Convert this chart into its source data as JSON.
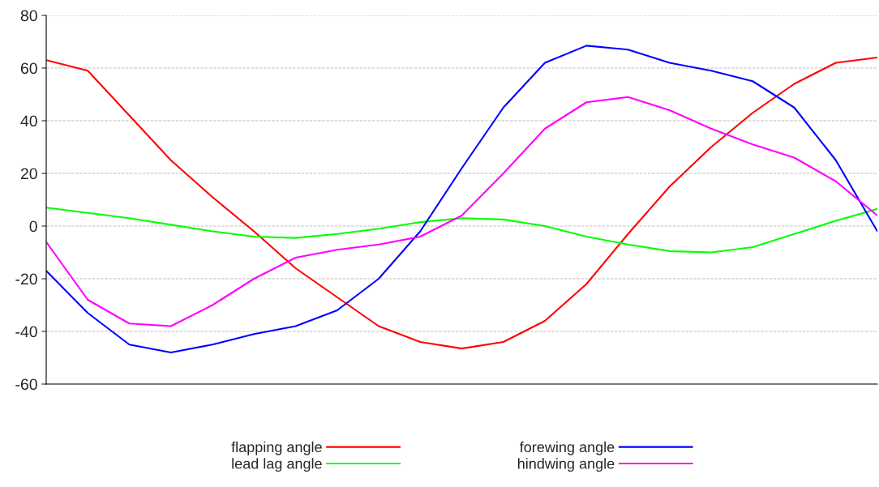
{
  "chart_data": {
    "type": "line",
    "categories": [
      null,
      null,
      null,
      null,
      null,
      null,
      null,
      null,
      null,
      null,
      null,
      null,
      null,
      null,
      null,
      null,
      null,
      null,
      null,
      null,
      null
    ],
    "series": [
      {
        "name": "flapping angle",
        "color": "#ff0000",
        "values": [
          63,
          59,
          42,
          25,
          11,
          -2,
          -16,
          -27,
          -38,
          -44,
          -46.5,
          -44,
          -36,
          -22,
          -3,
          15,
          30,
          43,
          54,
          62,
          64
        ]
      },
      {
        "name": "lead lag angle",
        "color": "#00ff00",
        "values": [
          7,
          5,
          3,
          0.5,
          -2,
          -4,
          -4.5,
          -3,
          -1,
          1.5,
          3,
          2.5,
          0,
          -4,
          -7,
          -9.5,
          -10,
          -8,
          -3,
          2,
          6.5
        ]
      },
      {
        "name": "forewing angle",
        "color": "#0000ff",
        "values": [
          -17,
          -33,
          -45,
          -48,
          -45,
          -41,
          -38,
          -32,
          -20,
          -2,
          22,
          45,
          62,
          68.5,
          67,
          62,
          59,
          55,
          45,
          25,
          -2
        ]
      },
      {
        "name": "hindwing angle",
        "color": "#ff00ff",
        "values": [
          -6,
          -28,
          -37,
          -38,
          -30,
          -20,
          -12,
          -9,
          -7,
          -4,
          4,
          20,
          37,
          47,
          49,
          44,
          37,
          31,
          26,
          17,
          4
        ]
      }
    ],
    "ylim": [
      -60,
      80
    ],
    "yticks": [
      -60,
      -40,
      -20,
      0,
      20,
      40,
      60,
      80
    ],
    "grid": "y",
    "legend": "bottom",
    "tick_labels": "y",
    "marker": "none",
    "line_style": "solid"
  }
}
